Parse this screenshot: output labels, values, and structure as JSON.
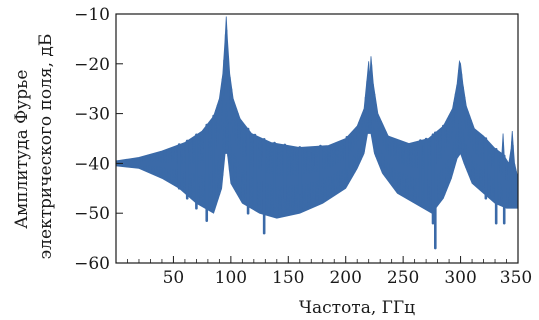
{
  "chart_data": {
    "type": "line",
    "xlabel": "Частота, ГГц",
    "ylabel_lines": [
      "Амплитуда Фурье",
      "электрического поля, дБ"
    ],
    "xlim": [
      0,
      350
    ],
    "ylim": [
      -60,
      -10
    ],
    "x_ticks": [
      50,
      100,
      150,
      200,
      250,
      300,
      350
    ],
    "y_ticks": [
      -10,
      -20,
      -30,
      -40,
      -50,
      -60
    ],
    "x_tick_labels": [
      "50",
      "100",
      "150",
      "200",
      "250",
      "300",
      "350"
    ],
    "y_tick_labels": [
      "−10",
      "−20",
      "−30",
      "−40",
      "−50",
      "−60"
    ],
    "grid": false,
    "series": [
      {
        "color": "#3b6aa8",
        "upper_envelope": [
          [
            0,
            -39.5
          ],
          [
            20,
            -38.8
          ],
          [
            40,
            -37.5
          ],
          [
            60,
            -35.8
          ],
          [
            75,
            -33.5
          ],
          [
            85,
            -30.5
          ],
          [
            90,
            -27
          ],
          [
            93,
            -22
          ],
          [
            95,
            -15
          ],
          [
            96,
            -10.5
          ],
          [
            97,
            -15
          ],
          [
            99,
            -22
          ],
          [
            102,
            -27
          ],
          [
            108,
            -31
          ],
          [
            118,
            -34
          ],
          [
            135,
            -35.8
          ],
          [
            160,
            -36.8
          ],
          [
            185,
            -36.4
          ],
          [
            200,
            -35
          ],
          [
            210,
            -32.5
          ],
          [
            216,
            -29
          ],
          [
            219,
            -22
          ],
          [
            220,
            -19.5
          ],
          [
            221,
            -23
          ],
          [
            222,
            -18.5
          ],
          [
            224,
            -24
          ],
          [
            228,
            -30
          ],
          [
            237,
            -34.5
          ],
          [
            255,
            -36
          ],
          [
            272,
            -35
          ],
          [
            285,
            -32.5
          ],
          [
            293,
            -29
          ],
          [
            297,
            -24
          ],
          [
            299,
            -19.5
          ],
          [
            300,
            -20
          ],
          [
            302,
            -24
          ],
          [
            305,
            -28.5
          ],
          [
            312,
            -33
          ],
          [
            320,
            -34.5
          ],
          [
            330,
            -37
          ],
          [
            336,
            -38
          ],
          [
            337,
            -34
          ],
          [
            338,
            -38.5
          ],
          [
            342,
            -40
          ],
          [
            344,
            -37
          ],
          [
            345,
            -33.5
          ],
          [
            346,
            -37
          ],
          [
            347,
            -40
          ],
          [
            349,
            -42
          ],
          [
            350,
            -43
          ]
        ],
        "lower_envelope": [
          [
            0,
            -40.5
          ],
          [
            20,
            -41
          ],
          [
            40,
            -43
          ],
          [
            55,
            -45
          ],
          [
            70,
            -48
          ],
          [
            85,
            -50
          ],
          [
            92,
            -45
          ],
          [
            95,
            -38
          ],
          [
            97,
            -38
          ],
          [
            100,
            -44
          ],
          [
            110,
            -48
          ],
          [
            125,
            -50
          ],
          [
            140,
            -51
          ],
          [
            160,
            -50
          ],
          [
            180,
            -48
          ],
          [
            200,
            -45
          ],
          [
            210,
            -41
          ],
          [
            216,
            -38
          ],
          [
            219,
            -34
          ],
          [
            222,
            -34
          ],
          [
            225,
            -38
          ],
          [
            232,
            -42
          ],
          [
            245,
            -46
          ],
          [
            260,
            -48
          ],
          [
            275,
            -50
          ],
          [
            285,
            -47
          ],
          [
            292,
            -43
          ],
          [
            297,
            -39
          ],
          [
            300,
            -38
          ],
          [
            303,
            -40
          ],
          [
            310,
            -44
          ],
          [
            320,
            -46
          ],
          [
            330,
            -48
          ],
          [
            340,
            -49
          ],
          [
            350,
            -49
          ]
        ],
        "dips": [
          [
            55,
            -45
          ],
          [
            62,
            -47
          ],
          [
            70,
            -49
          ],
          [
            79,
            -51.5
          ],
          [
            85,
            -47
          ],
          [
            115,
            -50
          ],
          [
            121,
            -48
          ],
          [
            129,
            -54
          ],
          [
            138,
            -48
          ],
          [
            147,
            -47
          ],
          [
            160,
            -46
          ],
          [
            178,
            -44.5
          ],
          [
            201,
            -41
          ],
          [
            265,
            -47.5
          ],
          [
            270,
            -48
          ],
          [
            276,
            -52
          ],
          [
            278,
            -57
          ],
          [
            285,
            -44.5
          ],
          [
            322,
            -47
          ],
          [
            331,
            -52
          ],
          [
            338,
            -52
          ]
        ]
      }
    ]
  }
}
